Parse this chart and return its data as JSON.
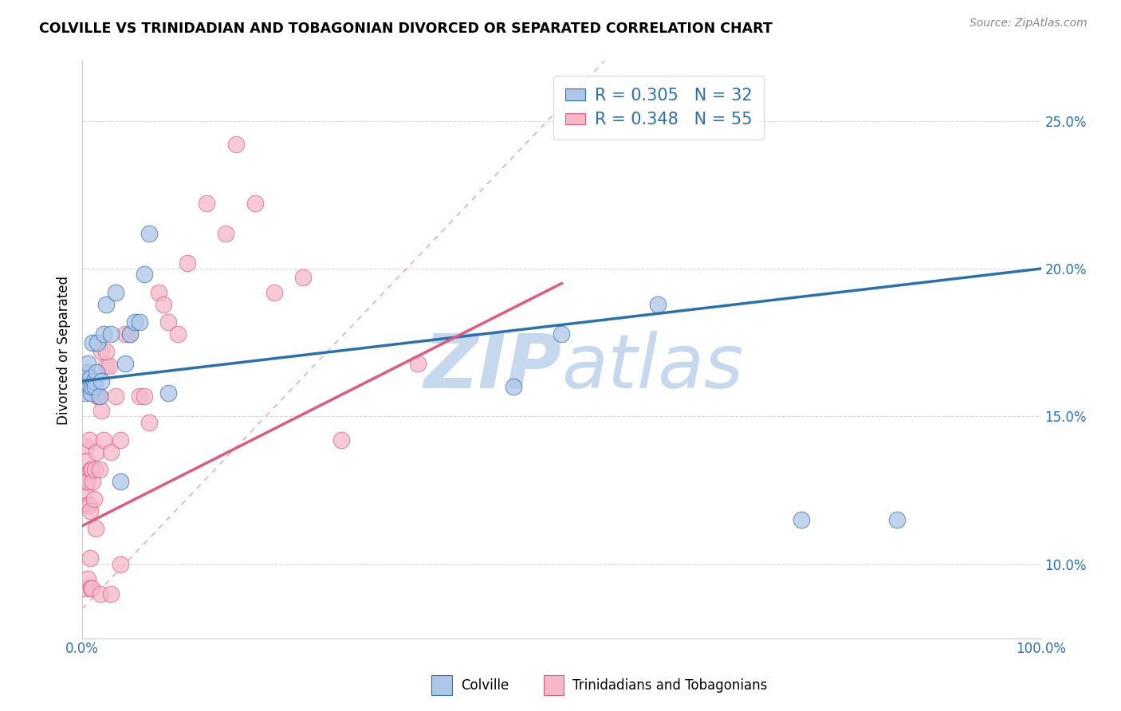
{
  "title": "COLVILLE VS TRINIDADIAN AND TOBAGONIAN DIVORCED OR SEPARATED CORRELATION CHART",
  "source": "Source: ZipAtlas.com",
  "xlabel_colville": "Colville",
  "xlabel_trinidadian": "Trinidadians and Tobagonians",
  "ylabel": "Divorced or Separated",
  "xmin": 0.0,
  "xmax": 1.0,
  "ymin": 0.075,
  "ymax": 0.27,
  "colville_R": 0.305,
  "colville_N": 32,
  "trinidadian_R": 0.348,
  "trinidadian_N": 55,
  "colville_color": "#aec6e8",
  "colville_line_color": "#2c6fad",
  "trinidadian_color": "#f4b8c8",
  "trinidadian_line_color": "#e05a80",
  "diagonal_color": "#e8a0b0",
  "watermark_color": "#c8d8e8",
  "colville_line_x": [
    0.0,
    1.0
  ],
  "colville_line_y": [
    0.162,
    0.2
  ],
  "trinidadian_line_x": [
    0.0,
    0.5
  ],
  "trinidadian_line_y": [
    0.113,
    0.195
  ],
  "colville_x": [
    0.003,
    0.004,
    0.005,
    0.006,
    0.007,
    0.008,
    0.009,
    0.01,
    0.011,
    0.012,
    0.013,
    0.015,
    0.016,
    0.018,
    0.02,
    0.022,
    0.025,
    0.03,
    0.035,
    0.04,
    0.045,
    0.05,
    0.055,
    0.06,
    0.065,
    0.07,
    0.09,
    0.45,
    0.5,
    0.6,
    0.75,
    0.85
  ],
  "colville_y": [
    0.158,
    0.162,
    0.165,
    0.168,
    0.16,
    0.163,
    0.158,
    0.16,
    0.175,
    0.162,
    0.16,
    0.165,
    0.175,
    0.157,
    0.162,
    0.178,
    0.188,
    0.178,
    0.192,
    0.128,
    0.168,
    0.178,
    0.182,
    0.182,
    0.198,
    0.212,
    0.158,
    0.16,
    0.178,
    0.188,
    0.115,
    0.115
  ],
  "trinidadian_x": [
    0.002,
    0.003,
    0.003,
    0.004,
    0.004,
    0.005,
    0.005,
    0.006,
    0.006,
    0.007,
    0.007,
    0.008,
    0.008,
    0.009,
    0.009,
    0.01,
    0.01,
    0.011,
    0.012,
    0.013,
    0.014,
    0.015,
    0.016,
    0.017,
    0.018,
    0.019,
    0.02,
    0.022,
    0.025,
    0.028,
    0.03,
    0.035,
    0.04,
    0.045,
    0.05,
    0.06,
    0.065,
    0.07,
    0.08,
    0.085,
    0.09,
    0.1,
    0.11,
    0.13,
    0.15,
    0.16,
    0.18,
    0.2,
    0.23,
    0.27,
    0.35,
    0.02,
    0.025,
    0.03,
    0.04
  ],
  "trinidadian_y": [
    0.13,
    0.125,
    0.092,
    0.14,
    0.128,
    0.135,
    0.12,
    0.128,
    0.095,
    0.12,
    0.142,
    0.102,
    0.118,
    0.132,
    0.092,
    0.132,
    0.092,
    0.128,
    0.122,
    0.132,
    0.112,
    0.138,
    0.157,
    0.157,
    0.132,
    0.09,
    0.152,
    0.142,
    0.167,
    0.167,
    0.138,
    0.157,
    0.142,
    0.178,
    0.178,
    0.157,
    0.157,
    0.148,
    0.192,
    0.188,
    0.182,
    0.178,
    0.202,
    0.222,
    0.212,
    0.242,
    0.222,
    0.192,
    0.197,
    0.142,
    0.168,
    0.172,
    0.172,
    0.09,
    0.1
  ],
  "ytick_labels": [
    "10.0%",
    "15.0%",
    "20.0%",
    "25.0%"
  ],
  "ytick_values": [
    0.1,
    0.15,
    0.2,
    0.25
  ],
  "xtick_labels": [
    "0.0%",
    "100.0%"
  ],
  "xtick_values": [
    0.0,
    1.0
  ],
  "background_color": "#ffffff",
  "grid_color": "#d8d8d8"
}
